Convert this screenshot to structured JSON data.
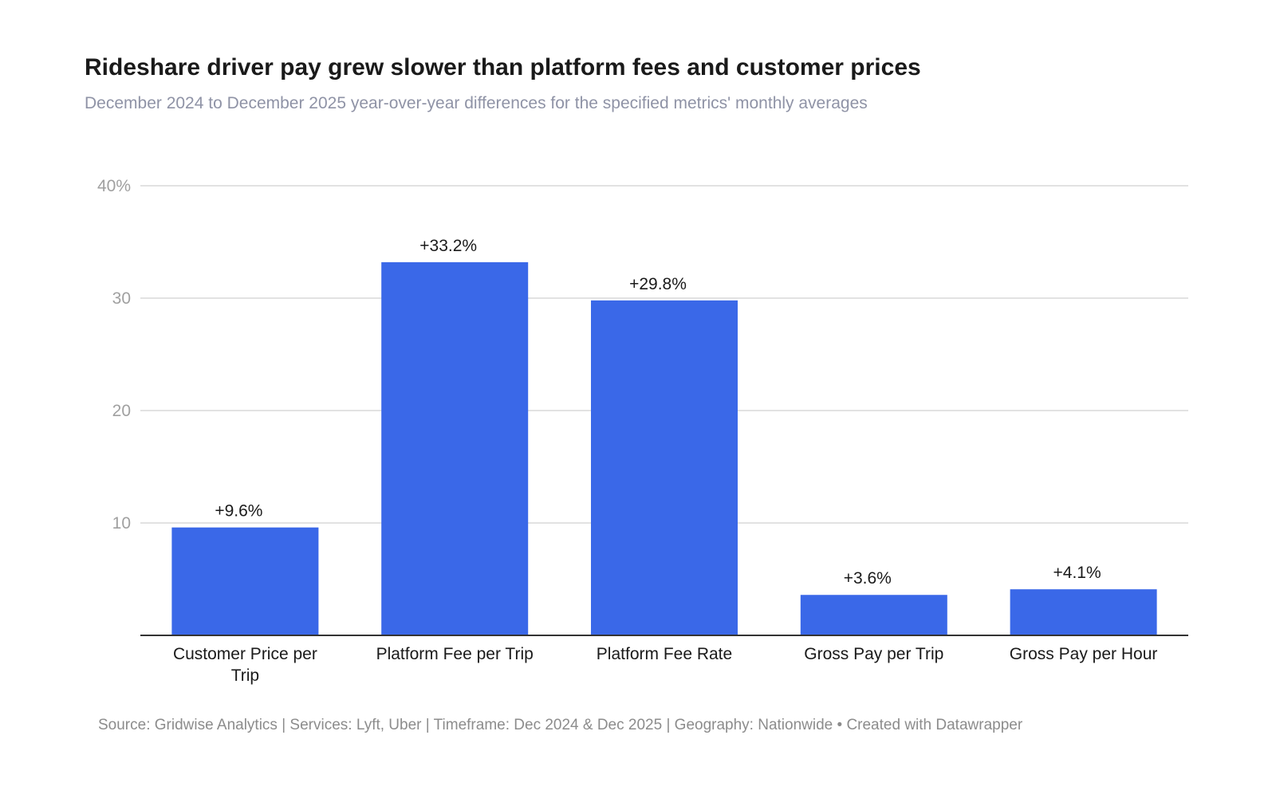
{
  "header": {
    "title": "Rideshare driver pay grew slower than platform fees and customer prices",
    "subtitle": "December 2024 to December 2025 year-over-year differences for the specified metrics' monthly averages"
  },
  "footer": {
    "text": "Source: Gridwise Analytics | Services: Lyft, Uber | Timeframe: Dec 2024 & Dec 2025 | Geography: Nationwide • Created with Datawrapper"
  },
  "colors": {
    "bar": "#3a68e8",
    "grid": "#e2e2e2",
    "baseline": "#333333"
  },
  "chart_data": {
    "type": "bar",
    "title": "Rideshare driver pay grew slower than platform fees and customer prices",
    "subtitle": "December 2024 to December 2025 year-over-year differences for the specified metrics' monthly averages",
    "xlabel": "",
    "ylabel": "",
    "ylim": [
      0,
      40
    ],
    "grid": true,
    "yticks": [
      {
        "value": 10,
        "label": "10"
      },
      {
        "value": 20,
        "label": "20"
      },
      {
        "value": 30,
        "label": "30"
      },
      {
        "value": 40,
        "label": "40%"
      }
    ],
    "categories": [
      [
        "Customer Price per",
        "Trip"
      ],
      [
        "Platform Fee per Trip"
      ],
      [
        "Platform Fee Rate"
      ],
      [
        "Gross Pay per Trip"
      ],
      [
        "Gross Pay per Hour"
      ]
    ],
    "values": [
      9.6,
      33.2,
      29.8,
      3.6,
      4.1
    ],
    "data_labels": [
      "+9.6%",
      "+33.2%",
      "+29.8%",
      "+3.6%",
      "+4.1%"
    ]
  }
}
